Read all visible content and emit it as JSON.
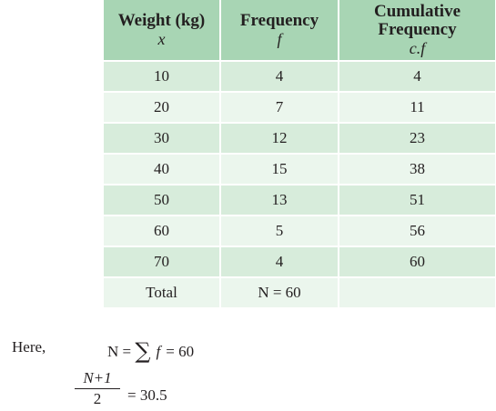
{
  "table": {
    "headers": [
      {
        "line1": "Weight (kg)",
        "line2": "",
        "symbol": "x"
      },
      {
        "line1": "Frequency",
        "line2": "",
        "symbol": "f"
      },
      {
        "line1": "Cumulative",
        "line2": "Frequency",
        "symbol": "c.f"
      }
    ],
    "rows": [
      [
        "10",
        "4",
        "4"
      ],
      [
        "20",
        "7",
        "11"
      ],
      [
        "30",
        "12",
        "23"
      ],
      [
        "40",
        "15",
        "38"
      ],
      [
        "50",
        "13",
        "51"
      ],
      [
        "60",
        "5",
        "56"
      ],
      [
        "70",
        "4",
        "60"
      ]
    ],
    "total": {
      "label": "Total",
      "value": "N = 60",
      "cf": ""
    }
  },
  "text": {
    "here": "Here,",
    "n_lhs": "N = ",
    "sigma": "∑",
    "f": "f",
    "n_rhs": "= 60",
    "frac_num": "N+1",
    "frac_den": "2",
    "frac_rhs": "= 30.5"
  },
  "colors": {
    "header_bg": "#a8d5b4",
    "row_dark": "#d7ecdb",
    "row_light": "#ebf6ed"
  }
}
